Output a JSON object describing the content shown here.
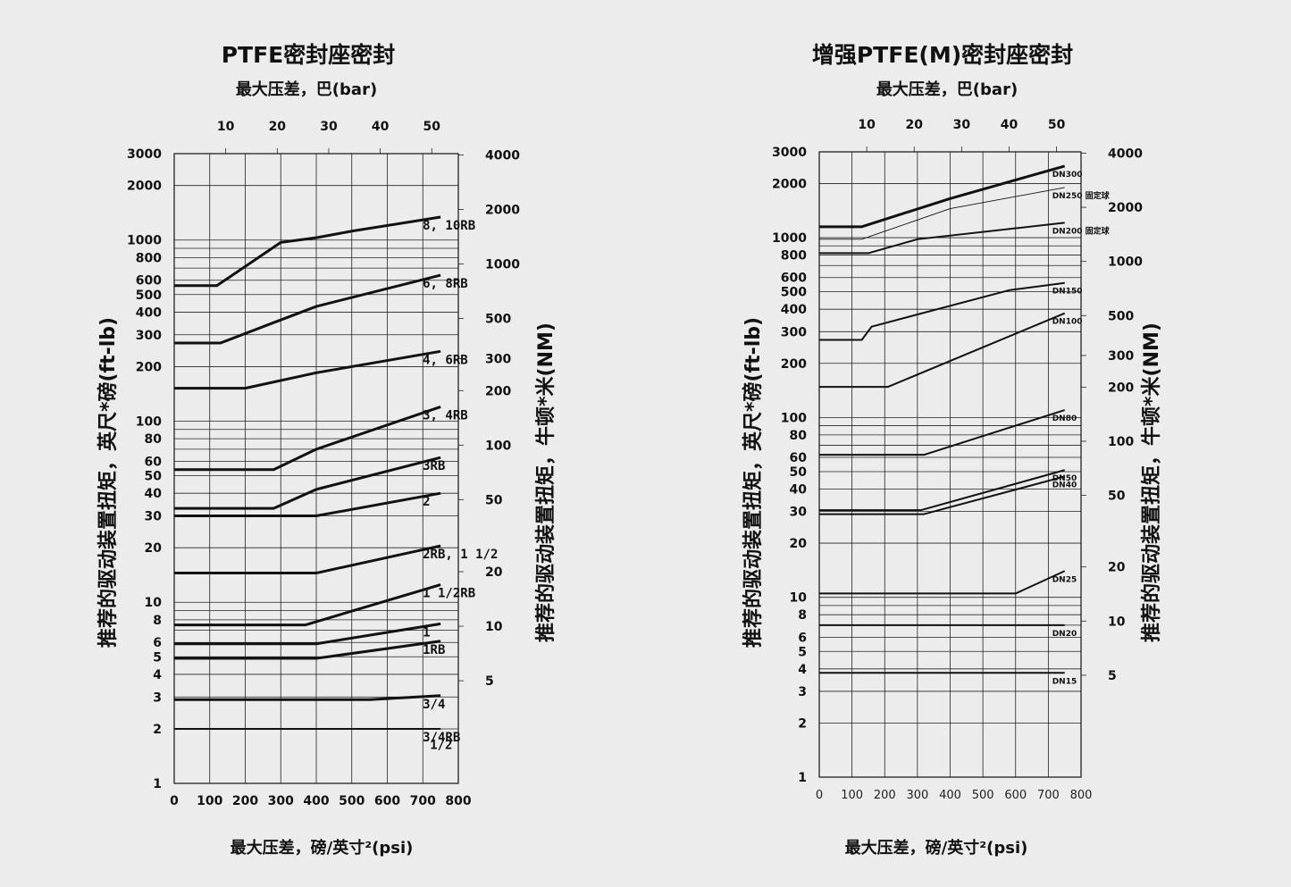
{
  "chart_data": [
    {
      "type": "line",
      "title": "PTFE密封座密封",
      "top_xlabel": "最大压差，巴(bar)",
      "xlabel": "最大压差，磅/英寸²(psi)",
      "ylabel_left": "推荐的驱动装置扭矩，英尺*磅(ft-lb)",
      "ylabel_right": "推荐的驱动装置扭矩，牛顿*米(NM)",
      "x_scale": "linear",
      "y_scale": "log",
      "xlim": [
        0,
        800
      ],
      "ylim": [
        1,
        3000
      ],
      "x_ticks": [
        "0",
        "100",
        "200",
        "300",
        "400",
        "500",
        "600",
        "700",
        "800"
      ],
      "top_ticks": [
        "10",
        "20",
        "30",
        "40",
        "50"
      ],
      "left_ticks": [
        "1",
        "2",
        "3",
        "4",
        "5",
        "6",
        "8",
        "10",
        "20",
        "30",
        "40",
        "50",
        "60",
        "80",
        "100",
        "200",
        "300",
        "400",
        "500",
        "600",
        "800",
        "1000",
        "2000",
        "3000"
      ],
      "right_ticks": [
        "5",
        "10",
        "20",
        "50",
        "100",
        "200",
        "300",
        "500",
        "1000",
        "2000",
        "4000"
      ],
      "series": [
        {
          "name": "8, 10RB",
          "weight": "heavy",
          "points": [
            [
              0,
              560
            ],
            [
              120,
              560
            ],
            [
              300,
              970
            ],
            [
              400,
              1030
            ],
            [
              500,
              1120
            ],
            [
              750,
              1340
            ]
          ]
        },
        {
          "name": "6, 8RB",
          "weight": "heavy",
          "points": [
            [
              0,
              270
            ],
            [
              130,
              270
            ],
            [
              280,
              350
            ],
            [
              400,
              430
            ],
            [
              750,
              640
            ]
          ]
        },
        {
          "name": "4, 6RB",
          "weight": "heavy",
          "points": [
            [
              0,
              152
            ],
            [
              200,
              152
            ],
            [
              400,
              185
            ],
            [
              750,
              243
            ]
          ]
        },
        {
          "name": "3, 4RB",
          "weight": "heavy",
          "points": [
            [
              0,
              54
            ],
            [
              280,
              54
            ],
            [
              400,
              70
            ],
            [
              750,
              120
            ]
          ]
        },
        {
          "name": "3RB",
          "weight": "heavy",
          "points": [
            [
              0,
              33
            ],
            [
              280,
              33
            ],
            [
              400,
              42
            ],
            [
              750,
              63
            ]
          ]
        },
        {
          "name": "2",
          "weight": "heavy",
          "points": [
            [
              0,
              30
            ],
            [
              400,
              30
            ],
            [
              750,
              40
            ]
          ]
        },
        {
          "name": "2RB, 1 1/2",
          "weight": "heavy",
          "points": [
            [
              0,
              14.5
            ],
            [
              400,
              14.5
            ],
            [
              750,
              20.5
            ]
          ]
        },
        {
          "name": "1 1/2RB",
          "weight": "heavy",
          "points": [
            [
              0,
              7.5
            ],
            [
              370,
              7.5
            ],
            [
              750,
              12.5
            ]
          ]
        },
        {
          "name": "1",
          "weight": "heavy",
          "points": [
            [
              0,
              5.9
            ],
            [
              400,
              5.9
            ],
            [
              750,
              7.6
            ]
          ]
        },
        {
          "name": "1RB",
          "weight": "heavy",
          "points": [
            [
              0,
              4.9
            ],
            [
              400,
              4.9
            ],
            [
              750,
              6.1
            ]
          ]
        },
        {
          "name": "3/4",
          "weight": "heavy",
          "points": [
            [
              0,
              2.9
            ],
            [
              550,
              2.9
            ],
            [
              750,
              3.05
            ]
          ]
        },
        {
          "name": "3/4RB",
          "weight": "normal",
          "points": [
            [
              0,
              2.0
            ],
            [
              750,
              2.0
            ]
          ]
        },
        {
          "name": "1/2",
          "weight": "none",
          "points": []
        }
      ]
    },
    {
      "type": "line",
      "title": "增强PTFE(M)密封座密封",
      "top_xlabel": "最大压差，巴(bar)",
      "xlabel": "最大压差，磅/英寸²(psi)",
      "ylabel_left": "推荐的驱动装置扭矩，英尺*磅(ft-lb)",
      "ylabel_right": "推荐的驱动装置扭矩，牛顿*米(NM)",
      "x_scale": "linear",
      "y_scale": "log",
      "xlim": [
        0,
        800
      ],
      "ylim": [
        1,
        3000
      ],
      "x_ticks": [
        "0",
        "100",
        "200",
        "300",
        "400",
        "500",
        "600",
        "700",
        "800"
      ],
      "top_ticks": [
        "10",
        "20",
        "30",
        "40",
        "50"
      ],
      "left_ticks": [
        "1",
        "2",
        "3",
        "4",
        "5",
        "6",
        "8",
        "10",
        "20",
        "30",
        "40",
        "50",
        "60",
        "80",
        "100",
        "200",
        "300",
        "400",
        "500",
        "600",
        "800",
        "1000",
        "2000",
        "3000"
      ],
      "right_ticks": [
        "5",
        "10",
        "20",
        "50",
        "100",
        "200",
        "300",
        "500",
        "1000",
        "2000",
        "4000"
      ],
      "series": [
        {
          "name": "DN300",
          "weight": "heavy",
          "points": [
            [
              0,
              1150
            ],
            [
              130,
              1150
            ],
            [
              400,
              1650
            ],
            [
              750,
              2500
            ]
          ]
        },
        {
          "name": "DN250 固定球",
          "weight": "thin",
          "points": [
            [
              0,
              980
            ],
            [
              130,
              980
            ],
            [
              400,
              1450
            ],
            [
              750,
              1900
            ]
          ]
        },
        {
          "name": "DN200 固定球",
          "weight": "normal",
          "points": [
            [
              0,
              820
            ],
            [
              150,
              820
            ],
            [
              300,
              980
            ],
            [
              750,
              1210
            ]
          ]
        },
        {
          "name": "DN150",
          "weight": "normal",
          "points": [
            [
              0,
              270
            ],
            [
              130,
              270
            ],
            [
              160,
              320
            ],
            [
              580,
              510
            ],
            [
              750,
              560
            ]
          ]
        },
        {
          "name": "DN100",
          "weight": "normal",
          "points": [
            [
              0,
              148
            ],
            [
              210,
              148
            ],
            [
              750,
              380
            ]
          ]
        },
        {
          "name": "DN80",
          "weight": "normal",
          "points": [
            [
              0,
              62
            ],
            [
              320,
              62
            ],
            [
              750,
              110
            ]
          ]
        },
        {
          "name": "DN50",
          "weight": "normal",
          "points": [
            [
              0,
              30.5
            ],
            [
              310,
              30.5
            ],
            [
              750,
              51
            ]
          ]
        },
        {
          "name": "DN40",
          "weight": "normal",
          "points": [
            [
              0,
              29
            ],
            [
              320,
              29
            ],
            [
              750,
              47
            ]
          ]
        },
        {
          "name": "DN25",
          "weight": "normal",
          "points": [
            [
              0,
              10.5
            ],
            [
              600,
              10.5
            ],
            [
              750,
              14
            ]
          ]
        },
        {
          "name": "DN20",
          "weight": "normal",
          "points": [
            [
              0,
              7
            ],
            [
              750,
              7
            ]
          ]
        },
        {
          "name": "DN15",
          "weight": "normal",
          "points": [
            [
              0,
              3.8
            ],
            [
              750,
              3.8
            ]
          ]
        }
      ]
    }
  ]
}
